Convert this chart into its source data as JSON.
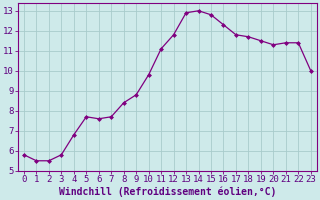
{
  "x": [
    0,
    1,
    2,
    3,
    4,
    5,
    6,
    7,
    8,
    9,
    10,
    11,
    12,
    13,
    14,
    15,
    16,
    17,
    18,
    19,
    20,
    21,
    22,
    23
  ],
  "y": [
    5.8,
    5.5,
    5.5,
    5.8,
    6.8,
    7.7,
    7.6,
    7.7,
    8.4,
    8.8,
    9.8,
    11.1,
    11.8,
    12.9,
    13.0,
    12.8,
    12.3,
    11.8,
    11.7,
    11.5,
    11.3,
    11.4,
    11.4,
    10.0
  ],
  "line_color": "#800080",
  "marker": "D",
  "marker_size": 2,
  "bg_color": "#ceeaea",
  "grid_color": "#a8cccc",
  "xlabel": "Windchill (Refroidissement éolien,°C)",
  "xlabel_fontsize": 7,
  "tick_fontsize": 6.5,
  "ylim": [
    5,
    13.4
  ],
  "yticks": [
    5,
    6,
    7,
    8,
    9,
    10,
    11,
    12,
    13
  ],
  "xlim": [
    -0.5,
    23.5
  ],
  "xticks": [
    0,
    1,
    2,
    3,
    4,
    5,
    6,
    7,
    8,
    9,
    10,
    11,
    12,
    13,
    14,
    15,
    16,
    17,
    18,
    19,
    20,
    21,
    22,
    23
  ],
  "spine_color": "#800080",
  "label_color": "#600080",
  "tick_color": "#600080"
}
